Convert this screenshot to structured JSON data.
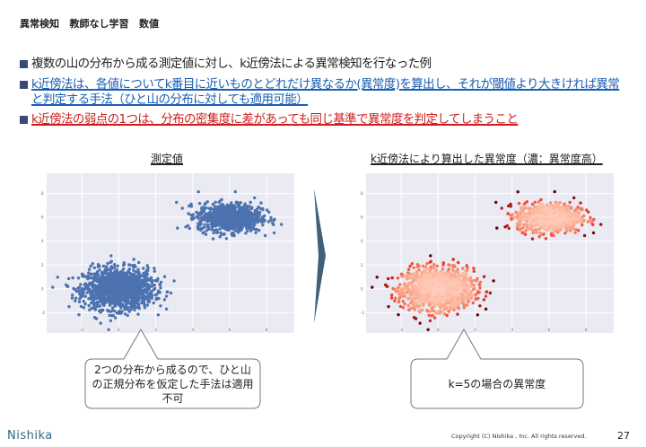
{
  "title": "異常検知   教師なし学習   数値",
  "bullets": [
    {
      "text": "複数の山の分布から成る測定値に対し、k近傍法による異常検知を行なった例",
      "style": "normal"
    },
    {
      "text": "k近傍法は、各値についてk番目に近いものとどれだけ異なるか(異常度)を算出し、それが閾値より大きければ異常と判定する手法（ひと山の分布に対しても適用可能）",
      "style": "blue"
    },
    {
      "text": "k近傍法の弱点の1つは、分布の密集度に差があっても同じ基準で異常度を判定してしまうこと",
      "style": "red"
    }
  ],
  "left_panel": {
    "heading": "測定値",
    "callout": "2つの分布から成るので、ひと山の正規分布を仮定した手法は適用不可"
  },
  "right_panel": {
    "heading": "k近傍法により算出した異常度（濃：異常度高）",
    "callout": "k=5の場合の異常度"
  },
  "footer": {
    "logo": "Nishika",
    "copyright": "Copyright (C) Nishika , Inc. All rights reserved.",
    "page": "27"
  },
  "colors": {
    "point_blue": "#4c72b0",
    "plot_bg": "#eaeaf2",
    "accent_blue": "#1a5fb4",
    "accent_red": "#d01c1c",
    "arrow": "#3f5f7a",
    "bullet": "#3a4a78"
  },
  "chart_data": [
    {
      "type": "scatter",
      "title": "測定値",
      "xlim": [
        -3.9,
        9.5
      ],
      "ylim": [
        -3.7,
        9.7
      ],
      "xticks": [
        "-2",
        "0",
        "2",
        "4",
        "6",
        "8"
      ],
      "yticks": [
        "8",
        "6",
        "4",
        "2",
        "0",
        "-2"
      ],
      "grid": true,
      "clusters": [
        {
          "center": [
            0,
            0
          ]
        },
        {
          "center": [
            6,
            6
          ]
        }
      ],
      "color": "#4c72b0"
    },
    {
      "type": "scatter",
      "title": "k近傍法により算出した異常度（濃：異常度高）",
      "xlim": [
        -3.9,
        9.5
      ],
      "ylim": [
        -3.7,
        9.7
      ],
      "xticks": [
        "-2",
        "0",
        "2",
        "4",
        "6",
        "8"
      ],
      "yticks": [
        "8",
        "6",
        "4",
        "2",
        "0",
        "-2"
      ],
      "grid": true,
      "k": 5,
      "colormap": "Reds"
    }
  ]
}
